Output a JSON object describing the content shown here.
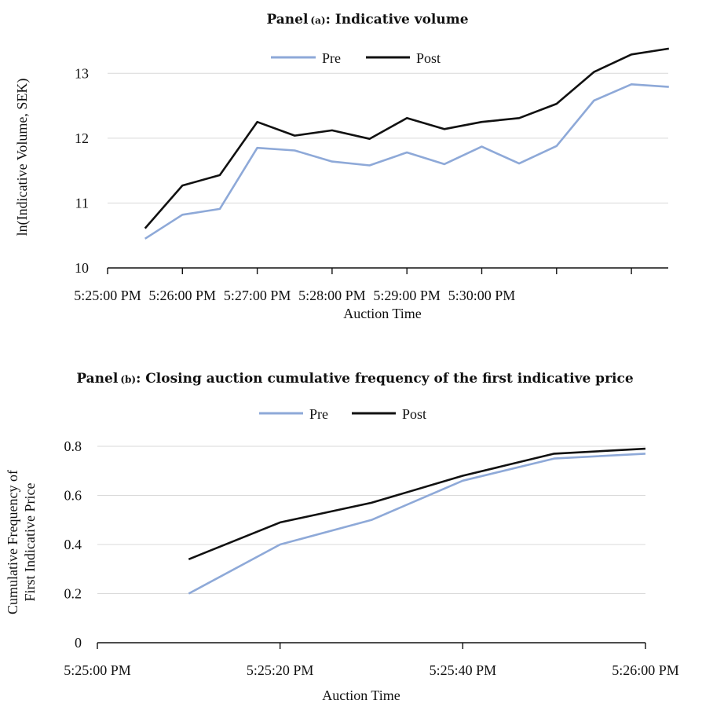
{
  "chart_data": [
    {
      "type": "line",
      "title_prefix": "Panel",
      "title_letter": "(a)",
      "title_rest": ": Indicative volume",
      "xlabel": "Auction Time",
      "ylabel": "ln(Indicative Volume, SEK)",
      "ylim": [
        10,
        13.5
      ],
      "yticks": [
        "10",
        "11",
        "12",
        "13"
      ],
      "xticks": [
        "5:25:00 PM",
        "5:26:00 PM",
        "5:27:00 PM",
        "5:28:00 PM",
        "5:29:00 PM",
        "5:30:00 PM"
      ],
      "x_minutes": [
        0.5,
        1.0,
        1.5,
        2.0,
        2.5,
        3.0,
        3.5,
        4.0,
        4.5,
        5.0,
        5.5,
        6.0,
        6.5,
        7.0,
        7.5
      ],
      "grid": true,
      "legend_position": "top",
      "series": [
        {
          "name": "Pre",
          "color": "#8ea9d8",
          "values": [
            10.45,
            10.82,
            10.91,
            11.85,
            11.81,
            11.64,
            11.58,
            11.78,
            11.6,
            11.87,
            11.61,
            11.88,
            12.58,
            12.83,
            12.79
          ]
        },
        {
          "name": "Post",
          "color": "#111111",
          "values": [
            10.61,
            11.27,
            11.43,
            12.25,
            12.04,
            12.12,
            11.99,
            12.31,
            12.14,
            12.25,
            12.31,
            12.53,
            13.02,
            13.29,
            13.38
          ]
        }
      ]
    },
    {
      "type": "line",
      "title_prefix": "Panel",
      "title_letter": "(b)",
      "title_rest": ": Closing auction cumulative frequency of the first indicative price",
      "xlabel": "Auction Time",
      "ylabel_line1": "Cumulative Frequency of",
      "ylabel_line2": "First Indicative Price",
      "ylim": [
        0,
        0.8
      ],
      "yticks": [
        "0",
        "0.2",
        "0.4",
        "0.6",
        "0.8"
      ],
      "xticks": [
        "5:25:00 PM",
        "5:25:20 PM",
        "5:25:40 PM",
        "5:26:00 PM"
      ],
      "x_seconds": [
        10,
        20,
        30,
        40,
        50,
        60
      ],
      "grid": true,
      "legend_position": "top",
      "series": [
        {
          "name": "Pre",
          "color": "#8ea9d8",
          "values": [
            0.2,
            0.4,
            0.5,
            0.66,
            0.75,
            0.77
          ]
        },
        {
          "name": "Post",
          "color": "#111111",
          "values": [
            0.34,
            0.49,
            0.57,
            0.68,
            0.77,
            0.79
          ]
        }
      ]
    }
  ]
}
